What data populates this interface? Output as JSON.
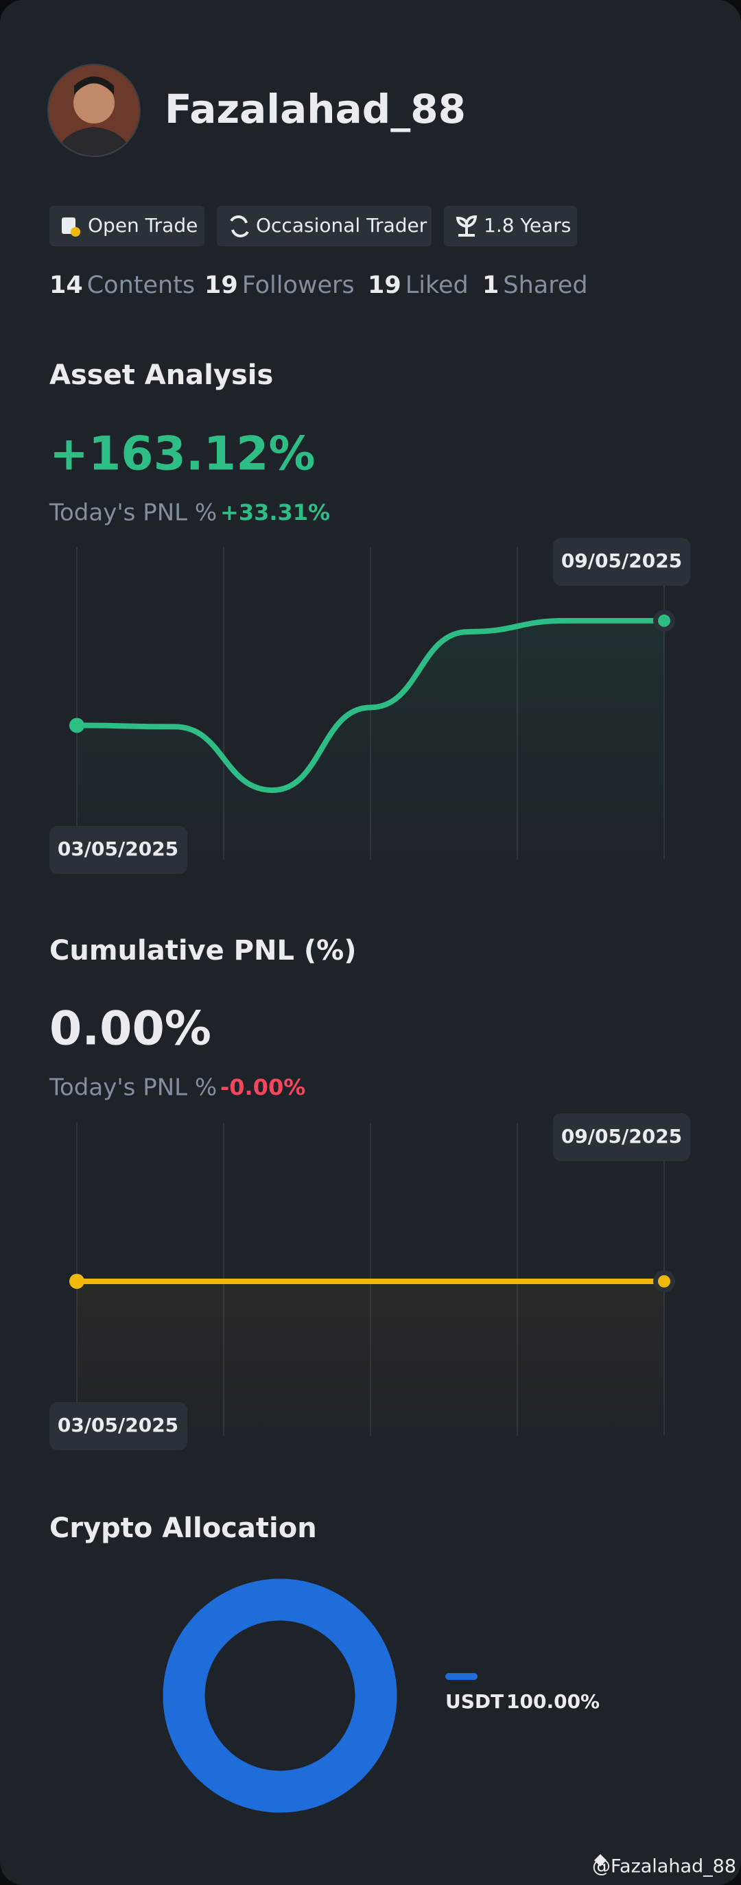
{
  "profile": {
    "username": "Fazalahad_88",
    "tags": [
      "Open Trade",
      "Occasional Trader",
      "1.8 Years"
    ],
    "stats": [
      {
        "count": "14",
        "label": "Contents"
      },
      {
        "count": "19",
        "label": "Followers"
      },
      {
        "count": "19",
        "label": "Liked"
      },
      {
        "count": "1",
        "label": "Shared"
      }
    ]
  },
  "asset_analysis": {
    "title": "Asset Analysis",
    "value": "+163.12%",
    "today_label": "Today's PNL %",
    "today_value": "+33.31%",
    "chart": {
      "type": "line",
      "color": "#2ebd85",
      "start_label": "03/05/2025",
      "end_label": "09/05/2025",
      "values": [
        0,
        -2,
        -101,
        28,
        146,
        163.12,
        163.12
      ]
    }
  },
  "cumulative_pnl": {
    "title": "Cumulative PNL (%)",
    "value": "0.00%",
    "today_label": "Today's PNL %",
    "today_value": "-0.00%",
    "chart": {
      "type": "line",
      "color": "#f0b90b",
      "start_label": "03/05/2025",
      "end_label": "09/05/2025",
      "values": [
        0,
        0,
        0,
        0,
        0,
        0,
        0
      ]
    }
  },
  "crypto_allocation": {
    "title": "Crypto Allocation",
    "chart": {
      "type": "pie",
      "categories": [
        "USDT"
      ],
      "values": [
        100
      ],
      "value_labels": [
        "100.00%"
      ],
      "colors": [
        "#1f6ddb"
      ]
    }
  },
  "footer": {
    "watermark": "@Fazalahad_88"
  }
}
